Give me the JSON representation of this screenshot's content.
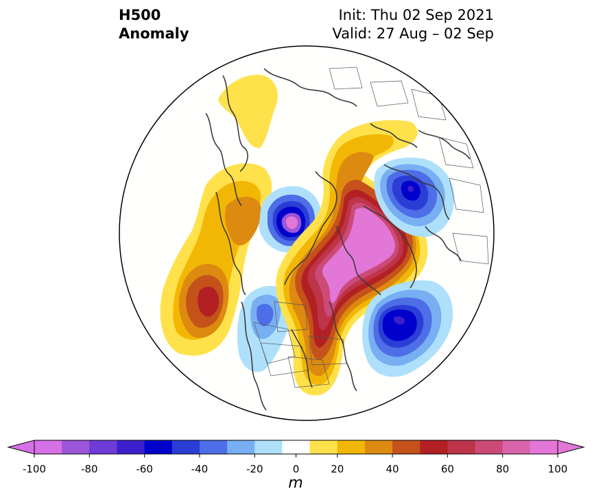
{
  "title": {
    "left_line1": "H500",
    "left_line2": "Anomaly",
    "init": "Init: Thu 02 Sep 2021",
    "valid": "Valid: 27 Aug – 02 Sep"
  },
  "colorbar": {
    "ticks": [
      "-100",
      "-80",
      "-60",
      "-40",
      "-20",
      "0",
      "20",
      "40",
      "60",
      "80",
      "100"
    ],
    "units": "m",
    "levels": [
      -100,
      -90,
      -80,
      -70,
      -60,
      -50,
      -40,
      -30,
      -20,
      -10,
      10,
      20,
      30,
      40,
      50,
      60,
      70,
      80,
      90,
      100
    ],
    "colors": [
      "#d670e6",
      "#9b55d8",
      "#6e3bd8",
      "#3c1fcc",
      "#0000cc",
      "#2a3ed6",
      "#4d6ee6",
      "#78aef2",
      "#aee0fb",
      "#ffffff",
      "#ffe14b",
      "#f2b705",
      "#dd8a10",
      "#c4521a",
      "#b22024",
      "#be3448",
      "#cc4a78",
      "#d864ac",
      "#e377d8"
    ],
    "extend_low_color": "#d670e6",
    "extend_high_color": "#e377d8"
  },
  "map": {
    "projection": "north-polar-stereographic",
    "field": "500 hPa geopotential height anomaly"
  }
}
